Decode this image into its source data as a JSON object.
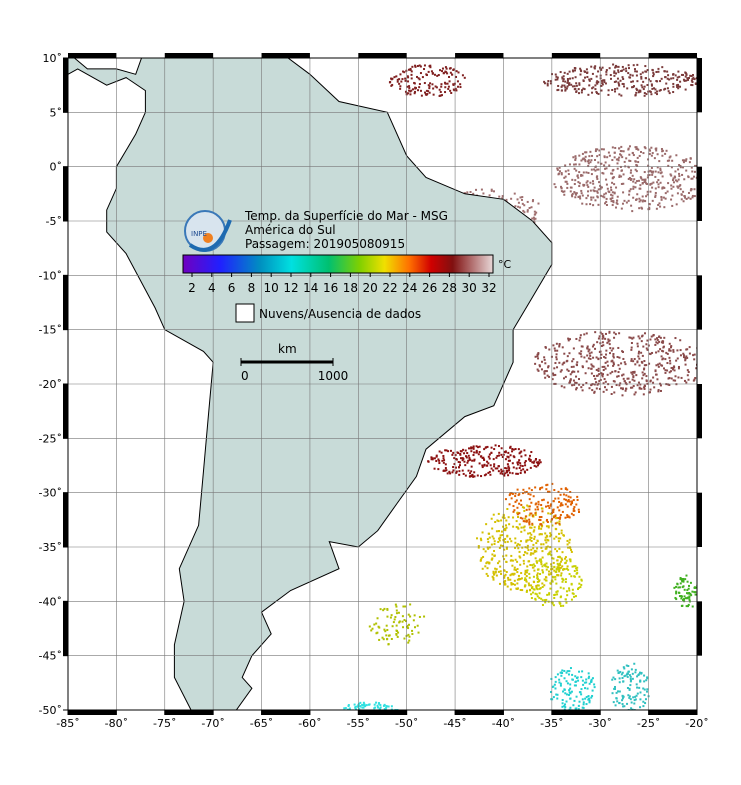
{
  "map": {
    "title": "Temp. da Superfície do Mar - MSG",
    "region": "América do Sul",
    "pass": "Passagem: 201905080915",
    "logo_text": "INPE",
    "colorbar_unit": "°C",
    "colorbar_ticks": [
      2,
      4,
      6,
      8,
      10,
      12,
      14,
      16,
      18,
      20,
      22,
      24,
      26,
      28,
      30,
      32
    ],
    "clouds_legend": "Nuvens/Ausencia de dados",
    "scale_unit": "km",
    "scale_ticks": [
      0,
      1000
    ],
    "lon_lim": [
      -85,
      -20
    ],
    "lat_lim": [
      -50,
      10
    ],
    "lon_ticks": [
      {
        "value": -85,
        "label": "-85˚"
      },
      {
        "value": -80,
        "label": "-80˚"
      },
      {
        "value": -75,
        "label": "-75˚"
      },
      {
        "value": -70,
        "label": "-70˚"
      },
      {
        "value": -65,
        "label": "-65˚"
      },
      {
        "value": -60,
        "label": "-60˚"
      },
      {
        "value": -55,
        "label": "-55˚"
      },
      {
        "value": -50,
        "label": "-50˚"
      },
      {
        "value": -45,
        "label": "-45˚"
      },
      {
        "value": -40,
        "label": "-40˚"
      },
      {
        "value": -35,
        "label": "-35˚"
      },
      {
        "value": -30,
        "label": "-30˚"
      },
      {
        "value": -25,
        "label": "-25˚"
      },
      {
        "value": -20,
        "label": "-20˚"
      }
    ],
    "lat_ticks": [
      {
        "value": 10,
        "label": "10˚"
      },
      {
        "value": 5,
        "label": "5˚"
      },
      {
        "value": 0,
        "label": "0˚"
      },
      {
        "value": -5,
        "label": "-5˚"
      },
      {
        "value": -10,
        "label": "-10˚"
      },
      {
        "value": -15,
        "label": "-15˚"
      },
      {
        "value": -20,
        "label": "-20˚"
      },
      {
        "value": -25,
        "label": "-25˚"
      },
      {
        "value": -30,
        "label": "-30˚"
      },
      {
        "value": -35,
        "label": "-35˚"
      },
      {
        "value": -40,
        "label": "-40˚"
      },
      {
        "value": -45,
        "label": "-45˚"
      },
      {
        "value": -50,
        "label": "-50˚"
      }
    ]
  }
}
